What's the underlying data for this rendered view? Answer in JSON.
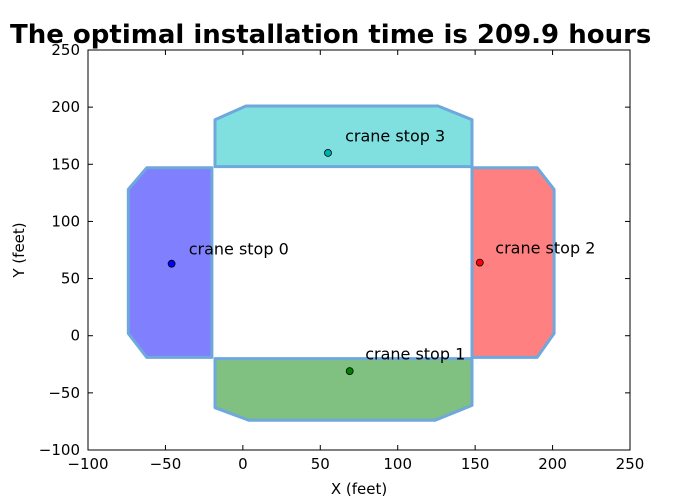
{
  "chart_data": {
    "type": "scatter",
    "title": "The optimal installation time is  209.9 hours",
    "xlabel": "X (feet)",
    "ylabel": "Y (feet)",
    "xlim": [
      -100,
      250
    ],
    "ylim": [
      -100,
      250
    ],
    "xticks": [
      -100,
      -50,
      0,
      50,
      100,
      150,
      200,
      250
    ],
    "yticks": [
      -100,
      -50,
      0,
      50,
      100,
      150,
      200,
      250
    ],
    "xtick_labels": [
      "−100",
      "−50",
      "0",
      "50",
      "100",
      "150",
      "200",
      "250"
    ],
    "ytick_labels": [
      "−100",
      "−50",
      "0",
      "50",
      "100",
      "150",
      "200",
      "250"
    ],
    "grid": false,
    "regions": [
      {
        "id": "region-0",
        "color": "#8080ff",
        "points": [
          [
            -62,
            147
          ],
          [
            -20,
            147
          ],
          [
            -20,
            -19
          ],
          [
            -62,
            -19
          ],
          [
            -74,
            2
          ],
          [
            -74,
            128
          ]
        ]
      },
      {
        "id": "region-1",
        "color": "#80c080",
        "points": [
          [
            -18,
            -20
          ],
          [
            148,
            -20
          ],
          [
            148,
            -61
          ],
          [
            124,
            -74
          ],
          [
            4,
            -74
          ],
          [
            -18,
            -63
          ]
        ]
      },
      {
        "id": "region-2",
        "color": "#ff8080",
        "points": [
          [
            148,
            147
          ],
          [
            190,
            147
          ],
          [
            201,
            128
          ],
          [
            201,
            2
          ],
          [
            190,
            -19
          ],
          [
            148,
            -19
          ]
        ]
      },
      {
        "id": "region-3",
        "color": "#80e0e0",
        "points": [
          [
            -18,
            189
          ],
          [
            2,
            201
          ],
          [
            126,
            201
          ],
          [
            148,
            189
          ],
          [
            148,
            148
          ],
          [
            -18,
            148
          ]
        ]
      }
    ],
    "region_edge_color": "#6fa8dc",
    "points": [
      {
        "label": "crane stop 0",
        "x": -46,
        "y": 63,
        "color": "#0000ff",
        "label_x": -35,
        "label_y": 71
      },
      {
        "label": "crane stop 1",
        "x": 69,
        "y": -31,
        "color": "#008000",
        "label_x": 79,
        "label_y": -21
      },
      {
        "label": "crane stop 2",
        "x": 153,
        "y": 64,
        "color": "#ff0000",
        "label_x": 163,
        "label_y": 72
      },
      {
        "label": "crane stop 3",
        "x": 55,
        "y": 160,
        "color": "#00b0b0",
        "label_x": 66,
        "label_y": 170
      }
    ]
  }
}
